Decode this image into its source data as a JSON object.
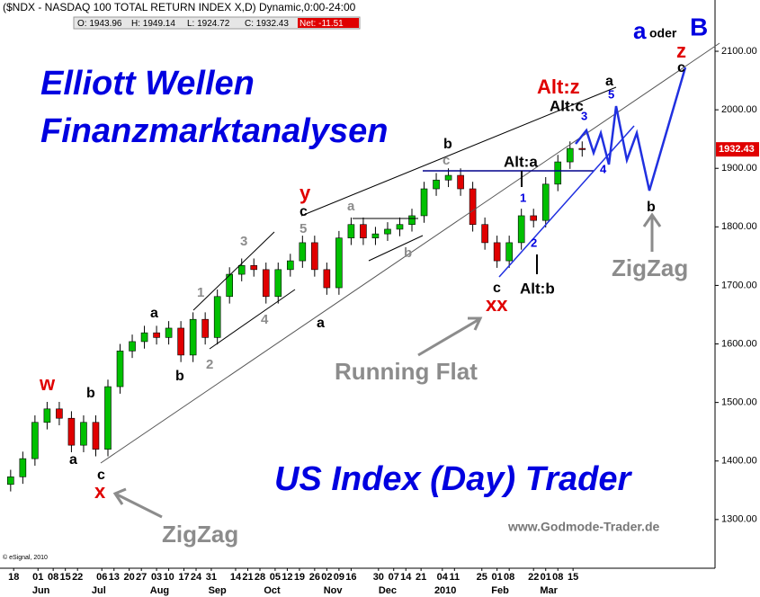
{
  "chart_data": {
    "type": "candlestick",
    "title": "($NDX - NASDAQ 100 TOTAL RETURN INDEX X,D) Dynamic,0:00-24:00",
    "header_values": [
      {
        "label": "O:",
        "value": 1943.96
      },
      {
        "label": "H:",
        "value": 1949.14
      },
      {
        "label": "L:",
        "value": 1924.72
      },
      {
        "label": "C:",
        "value": 1932.43
      },
      {
        "label": "Net:",
        "value": -11.51
      }
    ],
    "last_price": 1932.43,
    "x": [
      0,
      4,
      8,
      12,
      16,
      20,
      24,
      28,
      32,
      36,
      40,
      44,
      48,
      52,
      56,
      60,
      64,
      68,
      72,
      76,
      80,
      84,
      88,
      92,
      96,
      100,
      104,
      108,
      112,
      116,
      120,
      124,
      128,
      132,
      136,
      140,
      144,
      148,
      152,
      156,
      160,
      164,
      168,
      172,
      176,
      180,
      184,
      188
    ],
    "open": [
      1360,
      1373,
      1404,
      1466,
      1489,
      1473,
      1427,
      1466,
      1420,
      1527,
      1588,
      1604,
      1619,
      1611,
      1627,
      1581,
      1642,
      1611,
      1681,
      1719,
      1734,
      1727,
      1681,
      1727,
      1742,
      1773,
      1727,
      1696,
      1781,
      1804,
      1781,
      1788,
      1796,
      1804,
      1819,
      1865,
      1880,
      1888,
      1865,
      1804,
      1773,
      1742,
      1773,
      1819,
      1811,
      1873,
      1911,
      1934
    ],
    "high": [
      1385,
      1416,
      1478,
      1501,
      1501,
      1485,
      1478,
      1478,
      1539,
      1600,
      1616,
      1631,
      1631,
      1639,
      1639,
      1654,
      1654,
      1693,
      1731,
      1746,
      1746,
      1739,
      1739,
      1754,
      1785,
      1785,
      1739,
      1793,
      1816,
      1816,
      1800,
      1808,
      1816,
      1831,
      1877,
      1892,
      1900,
      1900,
      1877,
      1816,
      1785,
      1785,
      1831,
      1831,
      1885,
      1923,
      1946,
      1946
    ],
    "low": [
      1348,
      1361,
      1392,
      1454,
      1461,
      1415,
      1415,
      1408,
      1408,
      1515,
      1576,
      1592,
      1599,
      1599,
      1569,
      1569,
      1599,
      1599,
      1669,
      1707,
      1715,
      1669,
      1669,
      1715,
      1730,
      1715,
      1684,
      1684,
      1769,
      1769,
      1769,
      1776,
      1784,
      1792,
      1807,
      1853,
      1868,
      1853,
      1792,
      1761,
      1730,
      1730,
      1761,
      1799,
      1799,
      1861,
      1899,
      1920
    ],
    "close": [
      1373,
      1404,
      1466,
      1489,
      1473,
      1427,
      1466,
      1420,
      1527,
      1588,
      1604,
      1619,
      1611,
      1627,
      1581,
      1642,
      1611,
      1681,
      1719,
      1734,
      1727,
      1681,
      1727,
      1742,
      1773,
      1727,
      1696,
      1781,
      1804,
      1781,
      1788,
      1796,
      1804,
      1819,
      1865,
      1880,
      1888,
      1865,
      1804,
      1773,
      1742,
      1773,
      1819,
      1811,
      1873,
      1911,
      1934,
      1932
    ],
    "up_color": "#00c000",
    "down_color": "#e00000",
    "xlim": [
      -3.5,
      231.7
    ],
    "xticks": [
      {
        "value": 1,
        "label": "18"
      },
      {
        "value": 9,
        "label": "01"
      },
      {
        "value": 14,
        "label": "08"
      },
      {
        "value": 18,
        "label": "15"
      },
      {
        "value": 22,
        "label": "22"
      },
      {
        "value": 30,
        "label": "06"
      },
      {
        "value": 34,
        "label": "13"
      },
      {
        "value": 39,
        "label": "20"
      },
      {
        "value": 43,
        "label": "27"
      },
      {
        "value": 48,
        "label": "03"
      },
      {
        "value": 52,
        "label": "10"
      },
      {
        "value": 57,
        "label": "17"
      },
      {
        "value": 61,
        "label": "24"
      },
      {
        "value": 66,
        "label": "31"
      },
      {
        "value": 74,
        "label": "14"
      },
      {
        "value": 78,
        "label": "21"
      },
      {
        "value": 82,
        "label": "28"
      },
      {
        "value": 87,
        "label": "05"
      },
      {
        "value": 91,
        "label": "12"
      },
      {
        "value": 95,
        "label": "19"
      },
      {
        "value": 100,
        "label": "26"
      },
      {
        "value": 104,
        "label": "02"
      },
      {
        "value": 108,
        "label": "09"
      },
      {
        "value": 112,
        "label": "16"
      },
      {
        "value": 121,
        "label": "30"
      },
      {
        "value": 126,
        "label": "07"
      },
      {
        "value": 130,
        "label": "14"
      },
      {
        "value": 135,
        "label": "21"
      },
      {
        "value": 142,
        "label": "04"
      },
      {
        "value": 146,
        "label": "11"
      },
      {
        "value": 155,
        "label": "25"
      },
      {
        "value": 160,
        "label": "01"
      },
      {
        "value": 164,
        "label": "08"
      },
      {
        "value": 172,
        "label": "22"
      },
      {
        "value": 176,
        "label": "01"
      },
      {
        "value": 180,
        "label": "08"
      },
      {
        "value": 185,
        "label": "15"
      }
    ],
    "months": [
      {
        "value": 10,
        "label": "Jun"
      },
      {
        "value": 29,
        "label": "Jul"
      },
      {
        "value": 49,
        "label": "Aug"
      },
      {
        "value": 68,
        "label": "Sep"
      },
      {
        "value": 86,
        "label": "Oct"
      },
      {
        "value": 106,
        "label": "Nov"
      },
      {
        "value": 124,
        "label": "Dec"
      },
      {
        "value": 143,
        "label": "2010"
      },
      {
        "value": 161,
        "label": "Feb"
      },
      {
        "value": 177,
        "label": "Mar"
      }
    ],
    "ylim": [
      1216.8,
      2187.6
    ],
    "yticks": [
      {
        "value": 1300,
        "label": "1300.00"
      },
      {
        "value": 1400,
        "label": "1400.00"
      },
      {
        "value": 1500,
        "label": "1500.00"
      },
      {
        "value": 1600,
        "label": "1600.00"
      },
      {
        "value": 1700,
        "label": "1700.00"
      },
      {
        "value": 1800,
        "label": "1800.00"
      },
      {
        "value": 1900,
        "label": "1900.00"
      },
      {
        "value": 2000,
        "label": "2000.00"
      },
      {
        "value": 2100,
        "label": "2100.00"
      }
    ],
    "annotations": [
      "Elliott Wellen",
      "Finanzmarktanalysen",
      "US Index (Day) Trader",
      "www.Godmode-Trader.de",
      "Running Flat",
      "ZigZag",
      "ZigZag",
      "w",
      "x",
      "y",
      "xx",
      "z",
      "Alt:z",
      "a",
      "oder",
      "B",
      "b",
      "a",
      "c",
      "a",
      "b",
      "c",
      "a",
      "b",
      "c",
      "c",
      "a",
      "b",
      "1",
      "2",
      "3",
      "4",
      "5",
      "a",
      "b",
      "c",
      "Alt:c",
      "Alt:a",
      "Alt:b",
      "1",
      "2",
      "3",
      "4",
      "5",
      "© eSignal, 2010"
    ]
  }
}
